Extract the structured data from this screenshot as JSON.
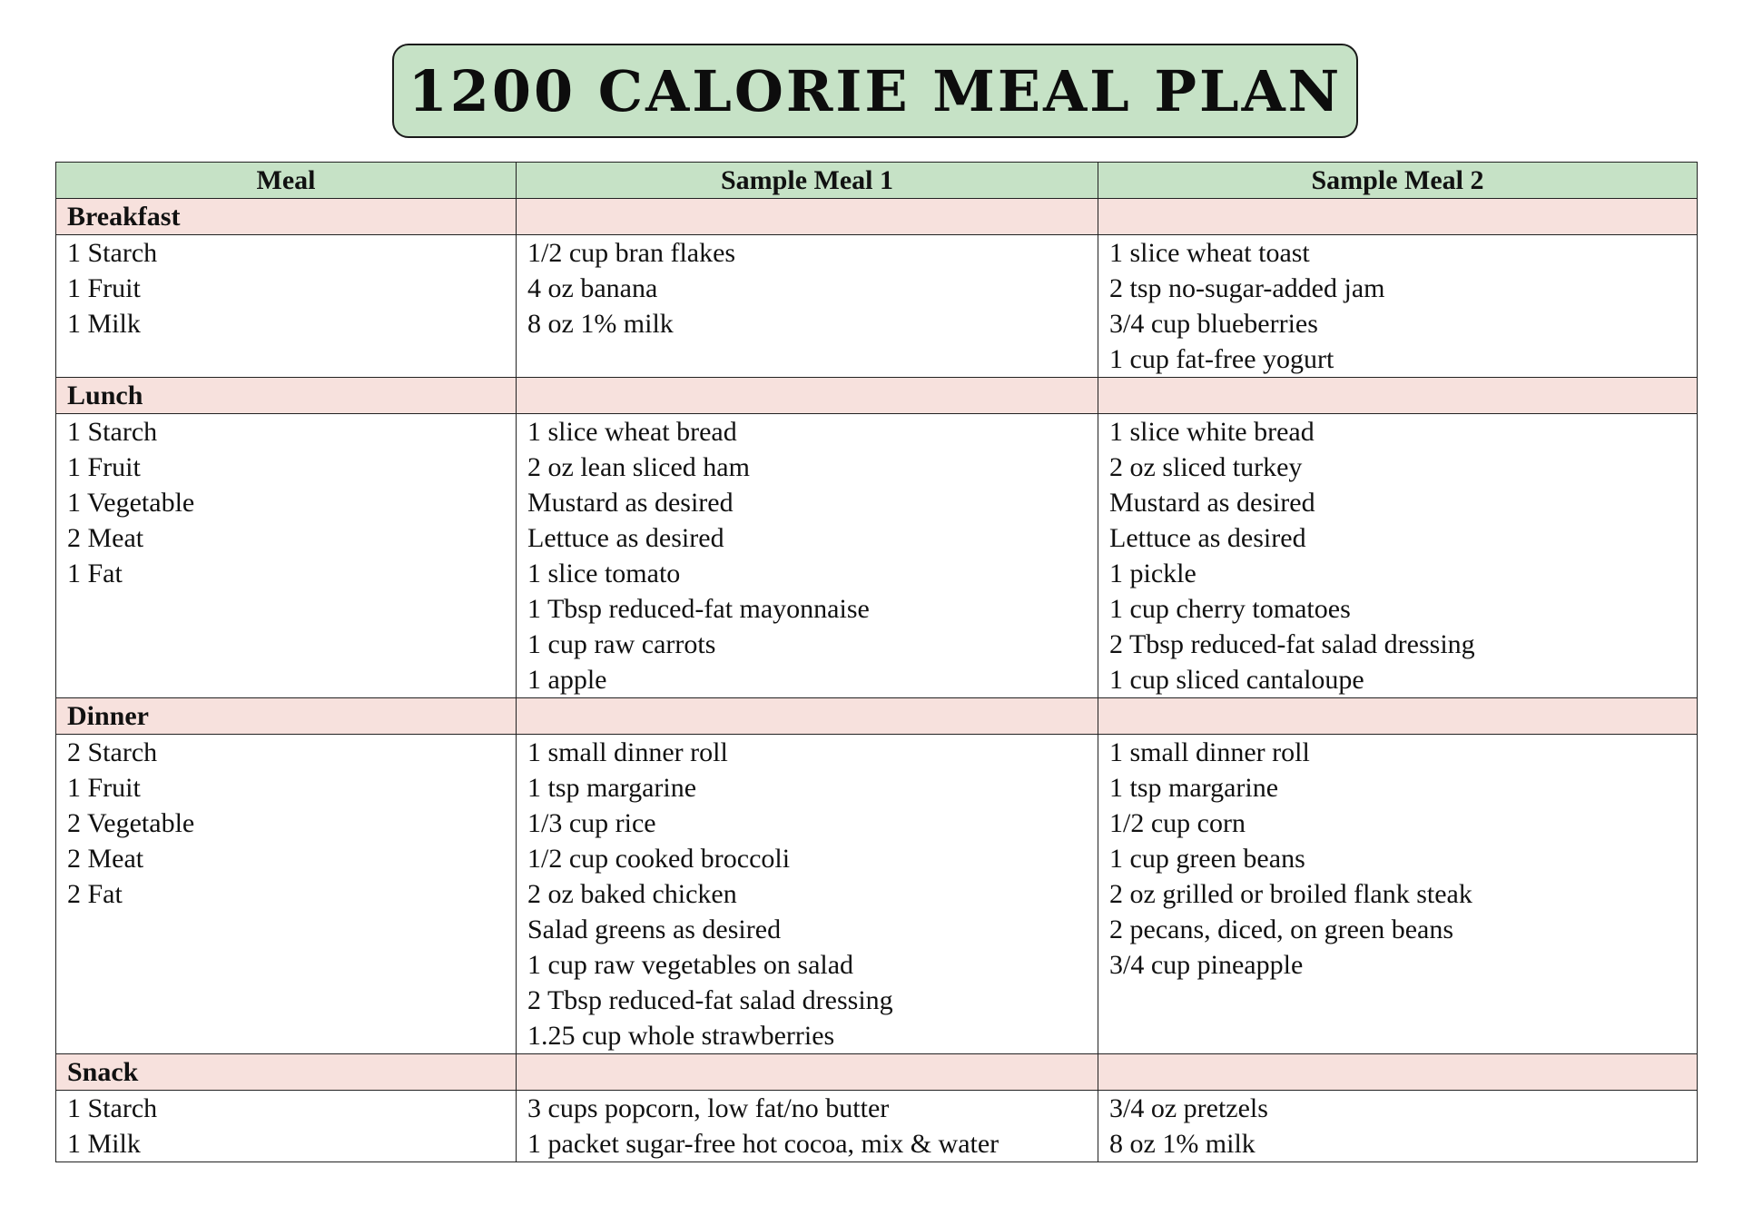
{
  "title": "1200 CALORIE MEAL PLAN",
  "colors": {
    "header_fill": "#c6e2c6",
    "section_fill": "#f7e1dd",
    "border": "#222222"
  },
  "table": {
    "headers": [
      "Meal",
      "Sample Meal 1",
      "Sample Meal 2"
    ],
    "sections": [
      {
        "name": "Breakfast",
        "meal": [
          "1 Starch",
          "1 Fruit",
          "1 Milk"
        ],
        "sample1": [
          "1/2 cup bran flakes",
          "4 oz banana",
          "8 oz 1% milk"
        ],
        "sample2": [
          "1 slice wheat toast",
          "2 tsp no-sugar-added jam",
          "3/4 cup blueberries",
          "1 cup fat-free yogurt"
        ]
      },
      {
        "name": "Lunch",
        "meal": [
          "1 Starch",
          "1 Fruit",
          "1 Vegetable",
          "2 Meat",
          "1 Fat"
        ],
        "sample1": [
          "1 slice wheat bread",
          "2 oz lean sliced ham",
          "Mustard as desired",
          "Lettuce as desired",
          "1 slice tomato",
          "1 Tbsp reduced-fat mayonnaise",
          "1 cup raw carrots",
          "1 apple"
        ],
        "sample2": [
          "1 slice white bread",
          "2 oz sliced turkey",
          "Mustard as desired",
          "Lettuce as desired",
          "1 pickle",
          "1 cup cherry tomatoes",
          "2 Tbsp reduced-fat salad dressing",
          "1 cup sliced cantaloupe"
        ]
      },
      {
        "name": "Dinner",
        "meal": [
          "2 Starch",
          "1 Fruit",
          "2 Vegetable",
          "2 Meat",
          "2 Fat"
        ],
        "sample1": [
          "1 small dinner roll",
          "1 tsp margarine",
          "1/3 cup rice",
          "1/2 cup cooked broccoli",
          "2 oz baked chicken",
          "Salad greens as desired",
          "1 cup raw vegetables on salad",
          "2 Tbsp reduced-fat salad dressing",
          "1.25 cup whole strawberries"
        ],
        "sample2": [
          "1 small dinner roll",
          "1 tsp margarine",
          "1/2 cup corn",
          "1 cup green beans",
          "2 oz grilled or broiled flank steak",
          "2 pecans, diced, on green beans",
          "3/4 cup pineapple"
        ]
      },
      {
        "name": "Snack",
        "meal": [
          "1 Starch",
          "1 Milk"
        ],
        "sample1": [
          "3 cups popcorn, low fat/no butter",
          "1 packet sugar-free hot cocoa, mix & water"
        ],
        "sample2": [
          "3/4 oz pretzels",
          "8 oz 1% milk"
        ]
      }
    ]
  }
}
